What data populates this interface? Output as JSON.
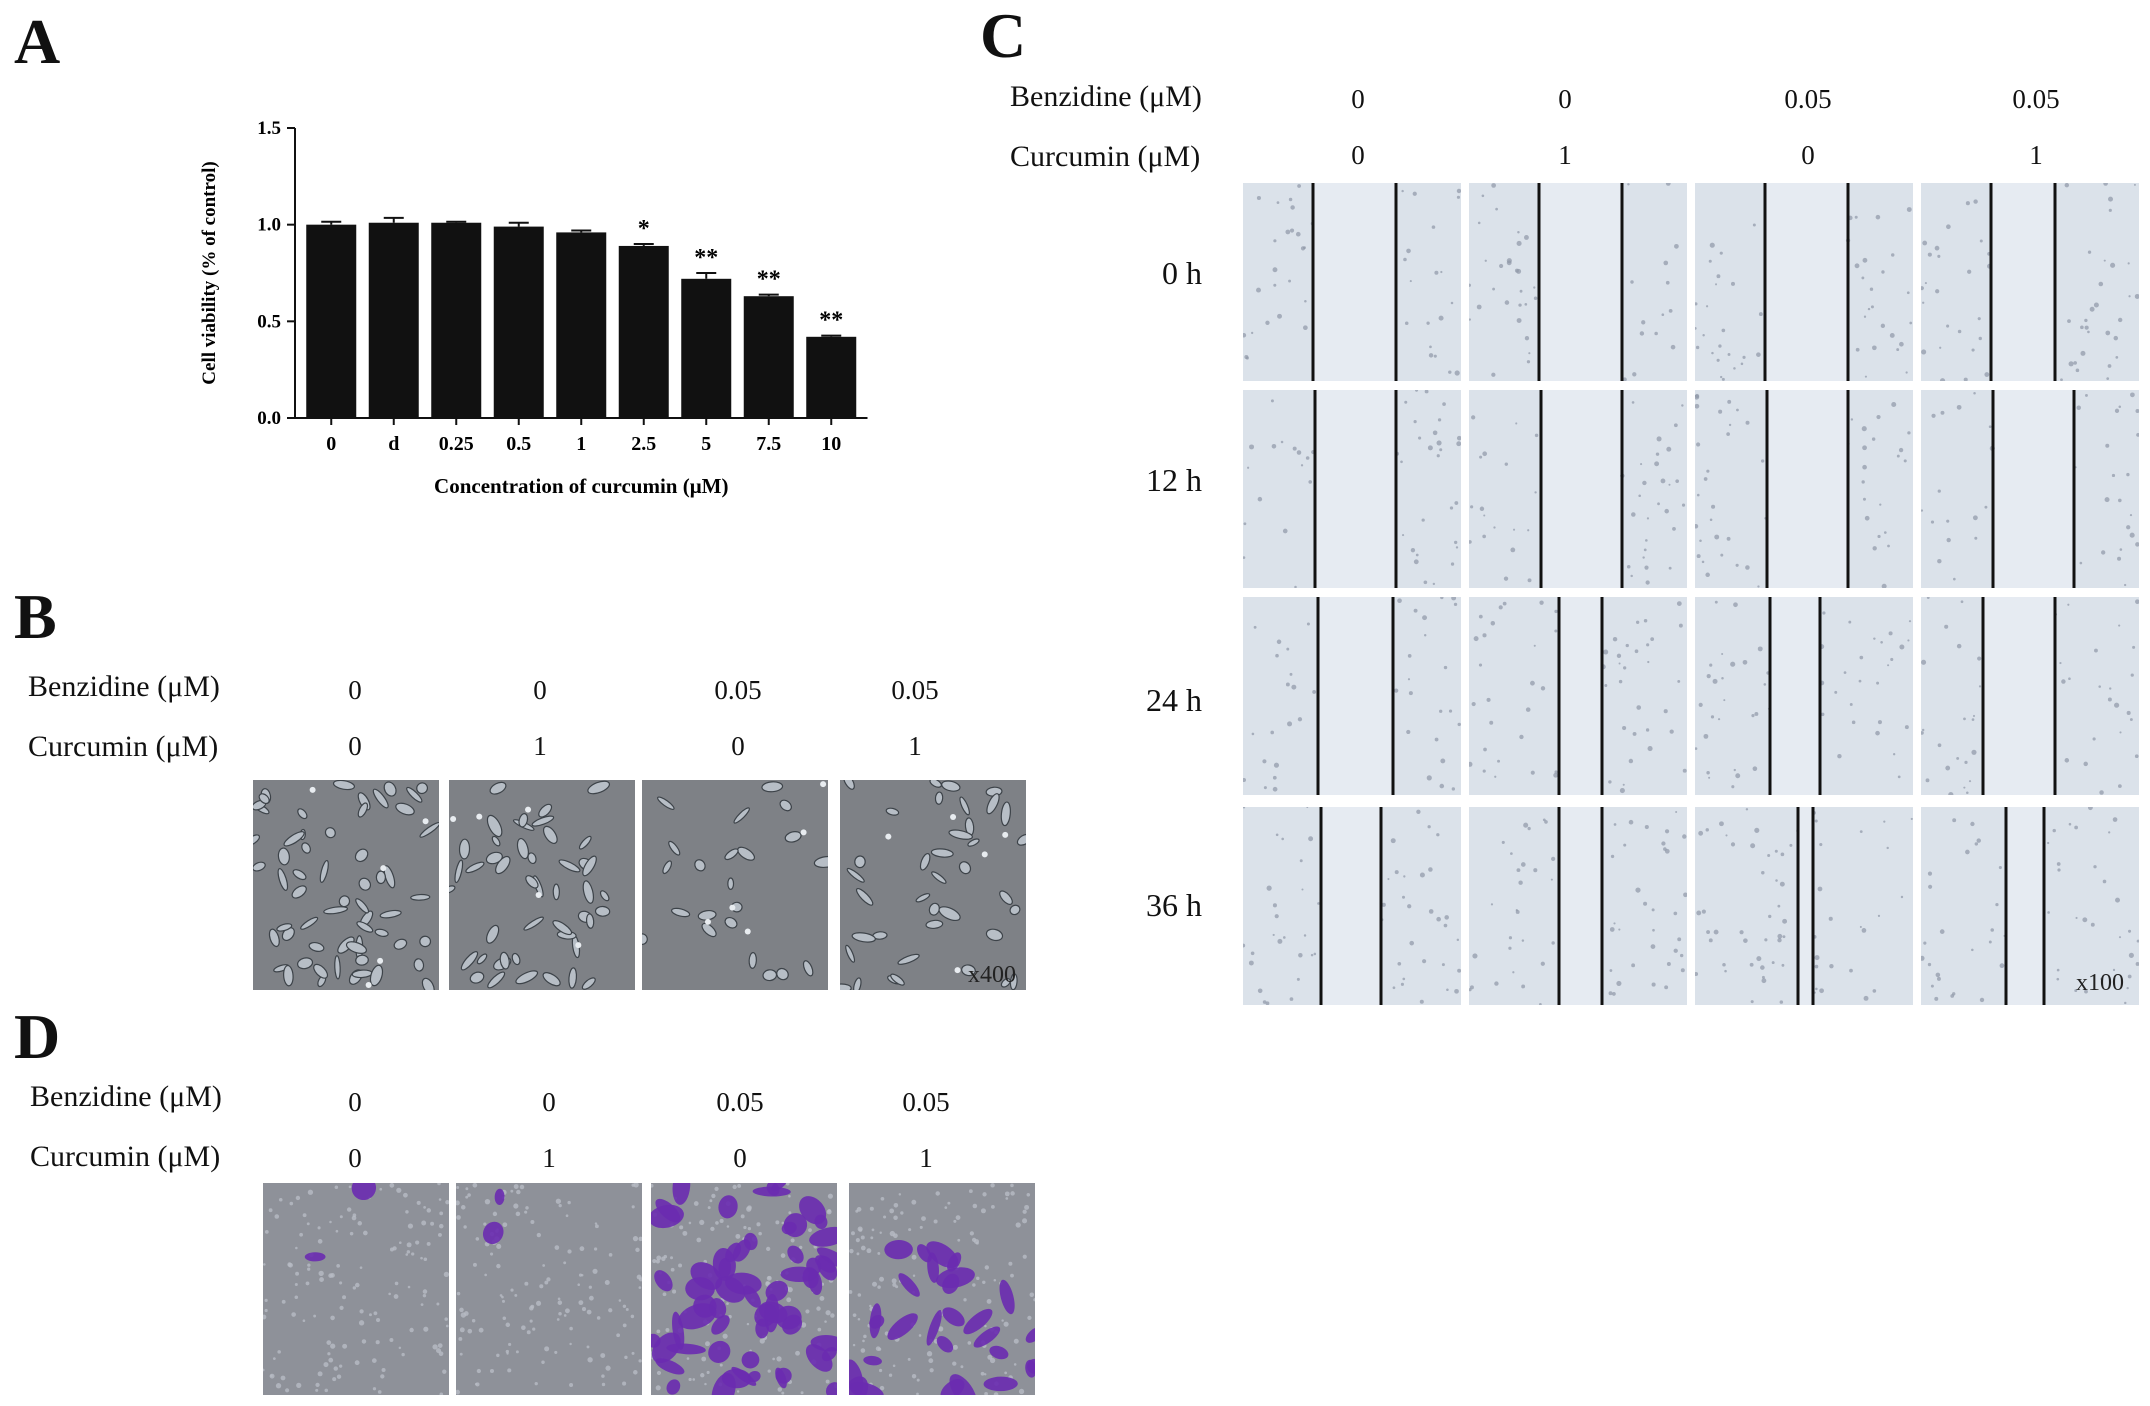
{
  "panels": {
    "A": "A",
    "B": "B",
    "C": "C",
    "D": "D"
  },
  "row_labels": {
    "benzidine": "Benzidine (μM)",
    "curcumin": "Curcumin (μM)"
  },
  "conditions": {
    "benzidine": [
      "0",
      "0",
      "0.05",
      "0.05"
    ],
    "curcumin": [
      "0",
      "1",
      "0",
      "1"
    ]
  },
  "timepoints": [
    "0 h",
    "12 h",
    "24 h",
    "36 h"
  ],
  "magnification": {
    "B": "x400",
    "C": "x100"
  },
  "chart_data": {
    "type": "bar",
    "categories": [
      "0",
      "d",
      "0.25",
      "0.5",
      "1",
      "2.5",
      "5",
      "7.5",
      "10"
    ],
    "values": [
      1.0,
      1.01,
      1.01,
      0.99,
      0.96,
      0.89,
      0.72,
      0.63,
      0.42
    ],
    "errors": [
      0.015,
      0.025,
      0.005,
      0.02,
      0.01,
      0.01,
      0.03,
      0.008,
      0.006
    ],
    "significance": [
      "",
      "",
      "",
      "",
      "",
      "*",
      "**",
      "**",
      "**"
    ],
    "xlabel": "Concentration of curcumin (μM)",
    "ylabel": "Cell viability (% of control)",
    "ylim": [
      0,
      1.5
    ],
    "yticks": [
      "0.0",
      "0.5",
      "1.0",
      "1.5"
    ],
    "bar_color": "#111111"
  },
  "colors": {
    "phase_bg": "#7e8186",
    "wound_bg": "#dbe2ea",
    "stain_bg": "#8e9199",
    "crystal_violet": "#6a2bb0"
  }
}
